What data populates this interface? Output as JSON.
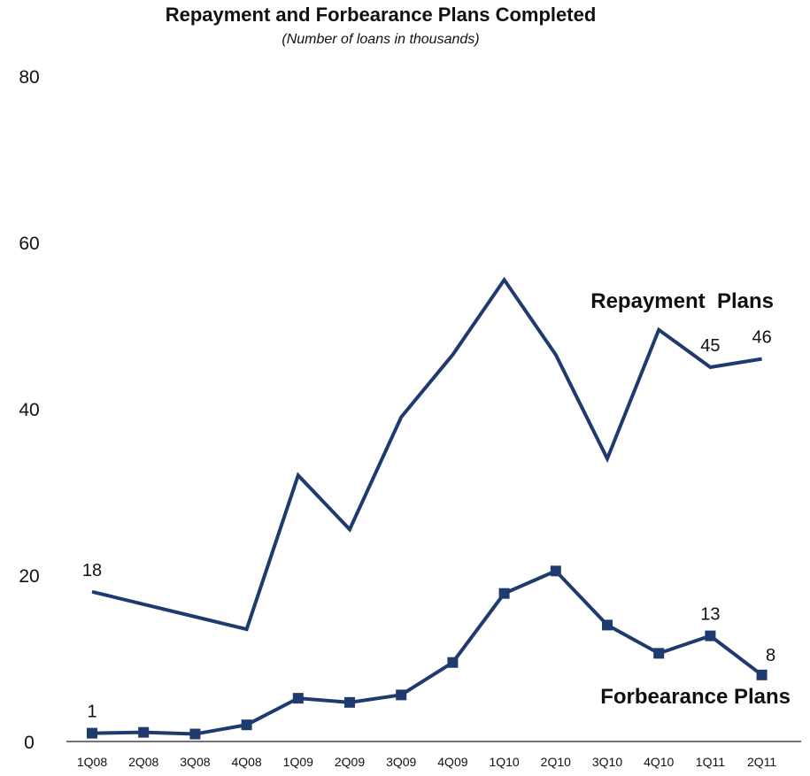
{
  "chart_data": {
    "type": "line",
    "title": "Repayment and Forbearance Plans Completed",
    "subtitle": "(Number of loans in thousands)",
    "xlabel": "",
    "ylabel": "",
    "ylim": [
      0,
      80
    ],
    "yticks": [
      "0",
      "20",
      "40",
      "60",
      "80"
    ],
    "categories": [
      "1Q08",
      "2Q08",
      "3Q08",
      "4Q08",
      "1Q09",
      "2Q09",
      "3Q09",
      "4Q09",
      "1Q10",
      "2Q10",
      "3Q10",
      "4Q10",
      "1Q11",
      "2Q11"
    ],
    "grid": false,
    "series": [
      {
        "name": "Repayment  Plans",
        "color": "#1f3a6e",
        "marker": "none",
        "values": [
          18,
          16.5,
          15,
          13.5,
          32,
          25.5,
          39,
          46.5,
          55.5,
          46.5,
          34,
          49.5,
          45,
          46
        ],
        "data_labels": [
          {
            "index": 0,
            "text": "18"
          },
          {
            "index": 12,
            "text": "45"
          },
          {
            "index": 13,
            "text": "46"
          }
        ]
      },
      {
        "name": "Forbearance Plans",
        "color": "#1f3a6e",
        "marker": "square",
        "values": [
          1,
          1.1,
          0.9,
          2,
          5.2,
          4.7,
          5.6,
          9.5,
          17.8,
          20.5,
          14,
          10.6,
          12.7,
          8
        ],
        "data_labels": [
          {
            "index": 0,
            "text": "1"
          },
          {
            "index": 12,
            "text": "13"
          },
          {
            "index": 13,
            "text": "8"
          }
        ]
      }
    ]
  }
}
